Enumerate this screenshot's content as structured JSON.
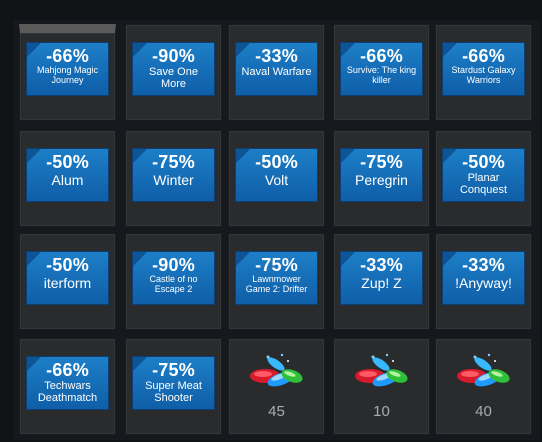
{
  "tiles": [
    {
      "discount": "-66%",
      "name": "Mahjong Magic Journey",
      "size": "s"
    },
    {
      "discount": "-90%",
      "name": "Save One More",
      "size": "m"
    },
    {
      "discount": "-33%",
      "name": "Naval Warfare",
      "size": "m"
    },
    {
      "discount": "-66%",
      "name": "Survive: The king killer",
      "size": "s"
    },
    {
      "discount": "-66%",
      "name": "Stardust Galaxy Warriors",
      "size": "s"
    },
    {
      "discount": "-50%",
      "name": "Alum",
      "size": "l"
    },
    {
      "discount": "-75%",
      "name": "Winter",
      "size": "l"
    },
    {
      "discount": "-50%",
      "name": "Volt",
      "size": "l"
    },
    {
      "discount": "-75%",
      "name": "Peregrin",
      "size": "l"
    },
    {
      "discount": "-50%",
      "name": "Planar Conquest",
      "size": "m"
    },
    {
      "discount": "-50%",
      "name": "iterform",
      "size": "l"
    },
    {
      "discount": "-90%",
      "name": "Castle of no Escape 2",
      "size": "s"
    },
    {
      "discount": "-75%",
      "name": "Lawnmower Game 2: Drifter",
      "size": "s"
    },
    {
      "discount": "-33%",
      "name": "Zup! Z",
      "size": "l"
    },
    {
      "discount": "-33%",
      "name": "!Anyway!",
      "size": "l"
    },
    {
      "discount": "-66%",
      "name": "Techwars Deathmatch",
      "size": "m"
    },
    {
      "discount": "-75%",
      "name": "Super Meat Shooter",
      "size": "m"
    }
  ],
  "gem_tiles": [
    {
      "count": "45",
      "icon": "gems-icon"
    },
    {
      "count": "10",
      "icon": "gems-icon"
    },
    {
      "count": "40",
      "icon": "gems-icon"
    }
  ]
}
